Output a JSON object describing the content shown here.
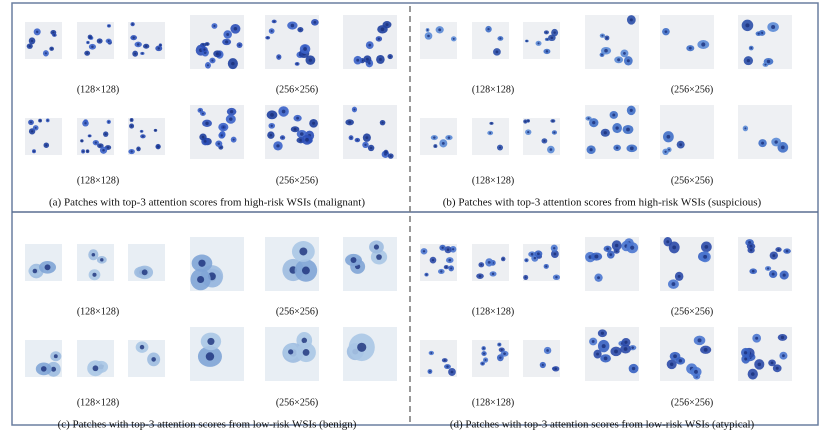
{
  "panels": [
    {
      "caption": "(a) Patches with top-3 attention scores from high-risk WSIs (malignant)",
      "rows": [
        {
          "small_label": "(128×128)",
          "large_label": "(256×256)"
        },
        {
          "small_label": "(128×128)",
          "large_label": "(256×256)"
        }
      ]
    },
    {
      "caption": "(b) Patches with top-3 attention scores from high-risk WSIs (suspicious)",
      "rows": [
        {
          "small_label": "(128×128)",
          "large_label": "(256×256)"
        },
        {
          "small_label": "(128×128)",
          "large_label": "(256×256)"
        }
      ]
    },
    {
      "caption": "(c) Patches with top-3 attention scores from low-risk WSIs (benign)",
      "rows": [
        {
          "small_label": "(128×128)",
          "large_label": "(256×256)"
        },
        {
          "small_label": "(128×128)",
          "large_label": "(256×256)"
        }
      ]
    },
    {
      "caption": "(d) Patches with top-3 attention scores from low-risk WSIs (atypical)",
      "rows": [
        {
          "small_label": "(128×128)",
          "large_label": "(256×256)"
        },
        {
          "small_label": "(128×128)",
          "large_label": "(256×256)"
        }
      ]
    }
  ]
}
